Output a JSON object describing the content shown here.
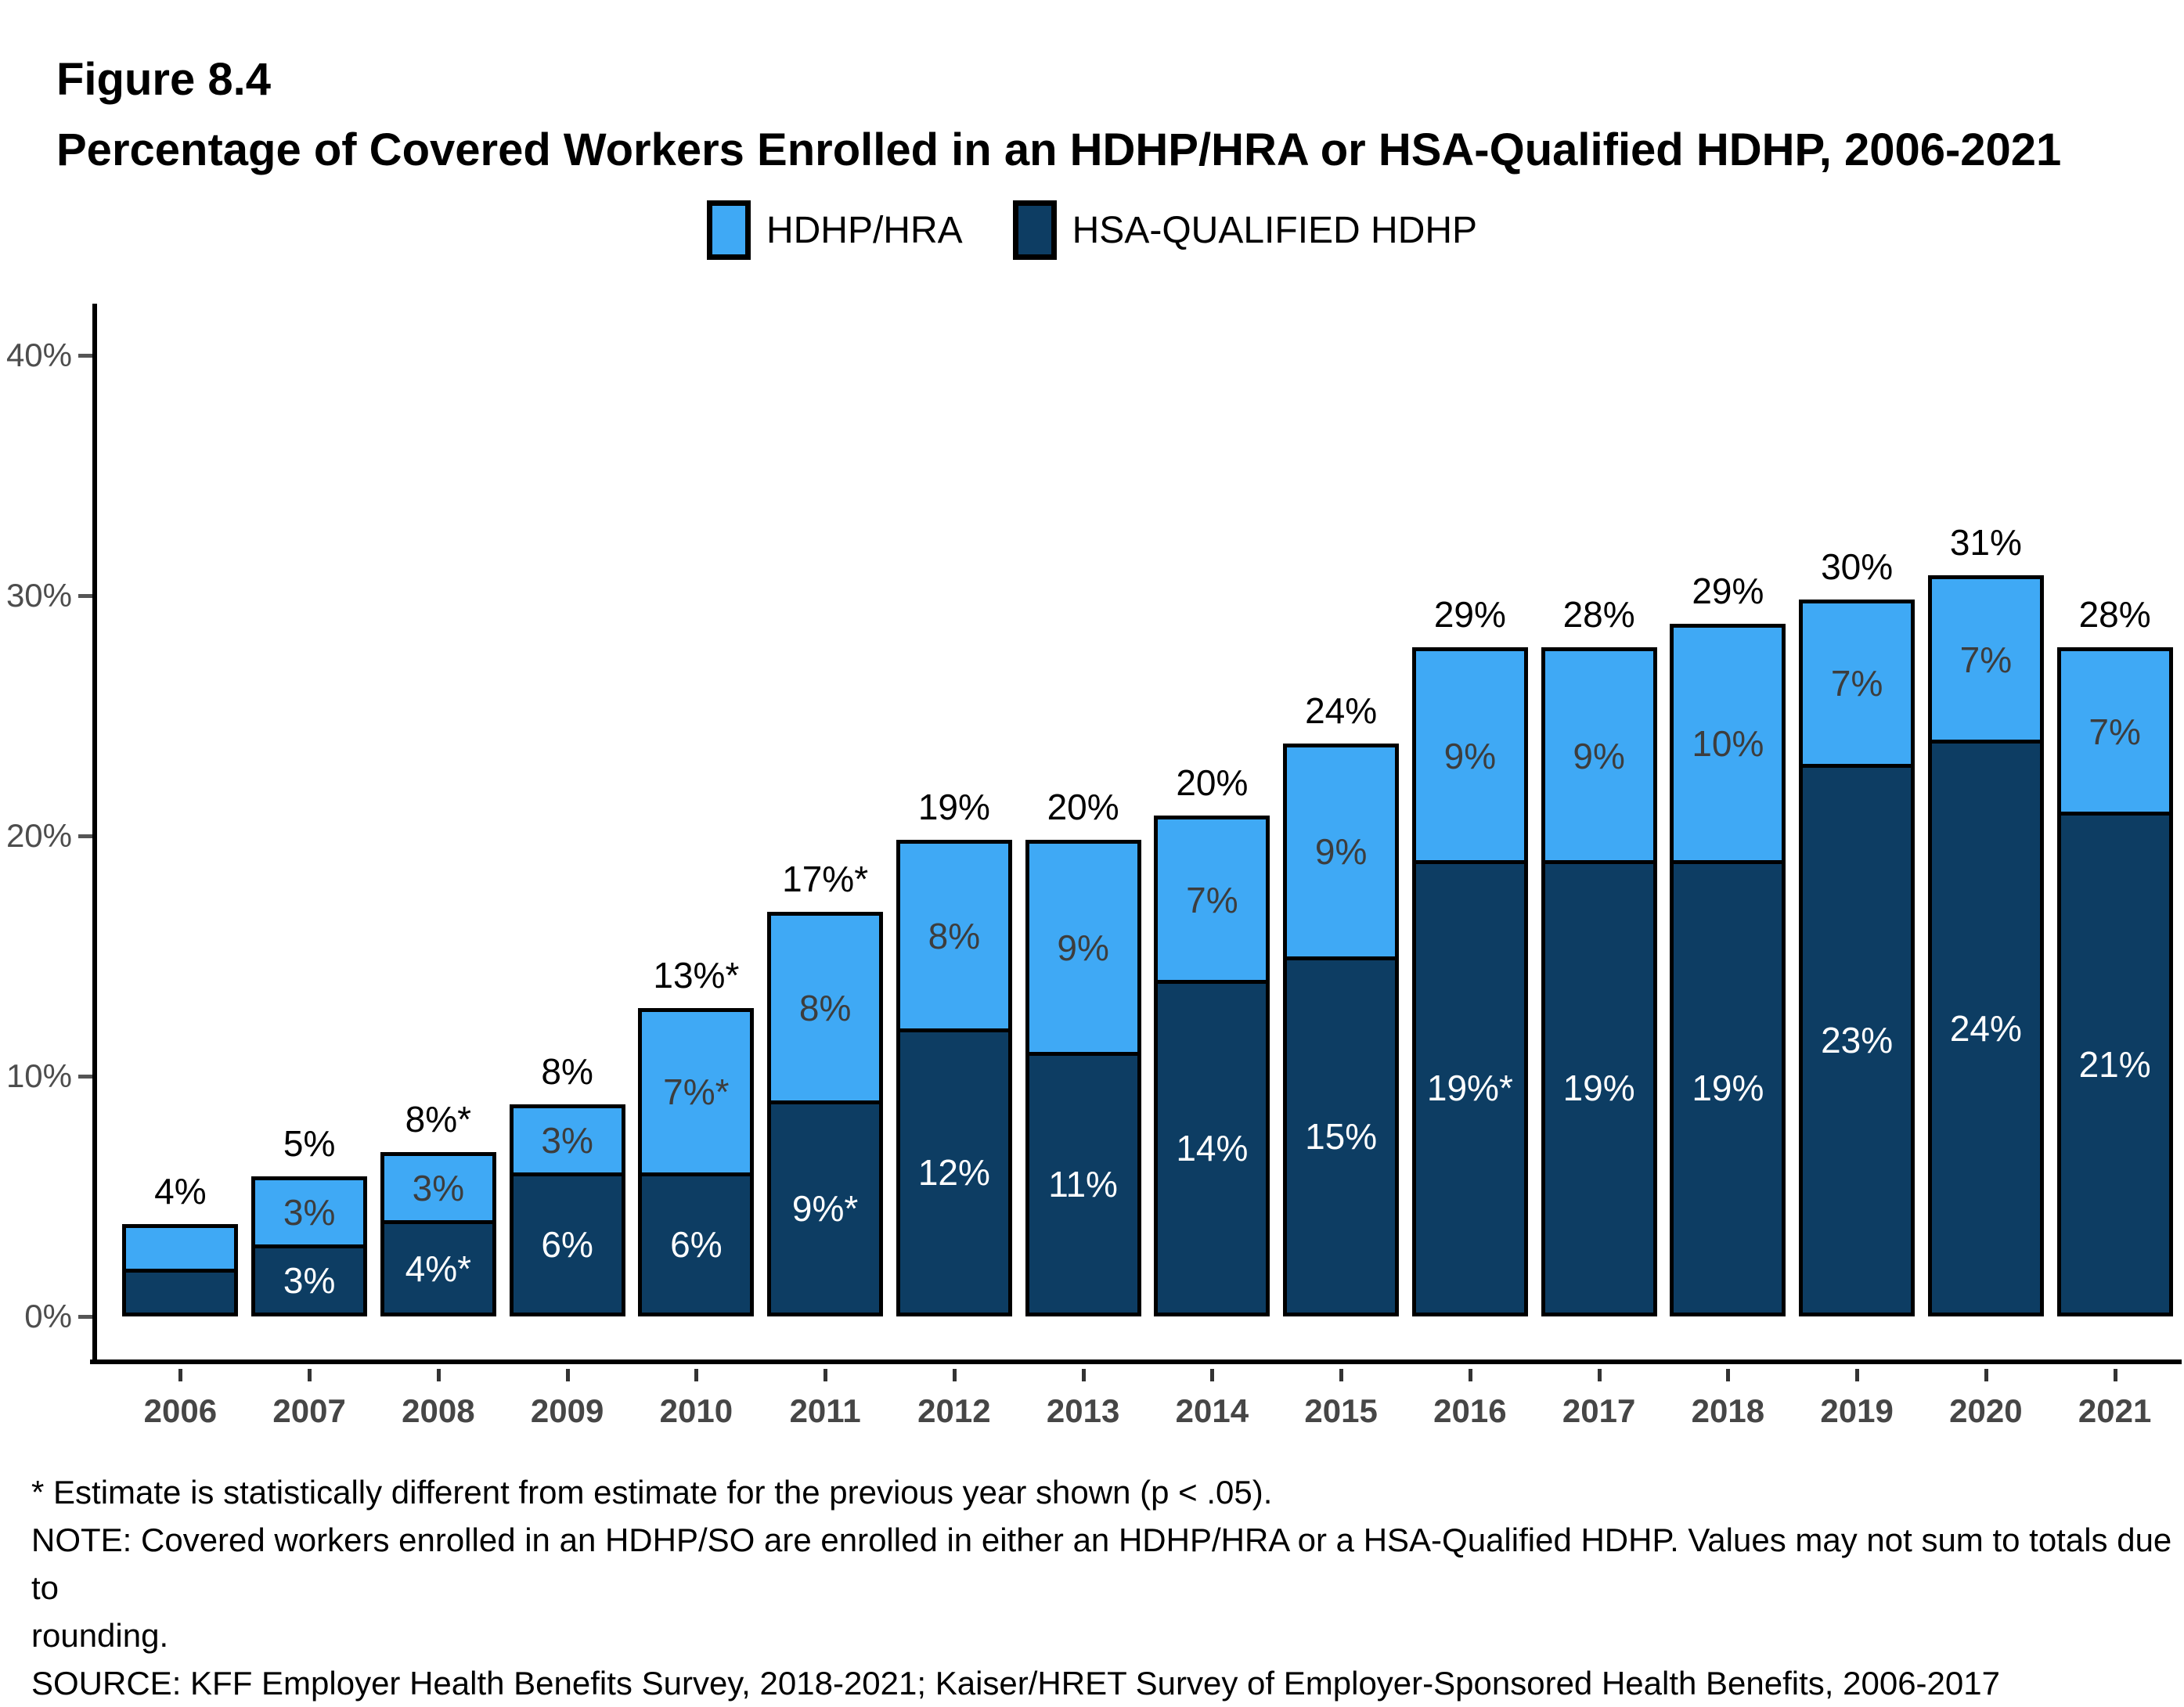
{
  "header": {
    "figure_label": "Figure 8.4",
    "title": "Percentage of Covered Workers Enrolled in an HDHP/HRA or HSA-Qualified HDHP, 2006-2021"
  },
  "legend": {
    "items": [
      {
        "label": "HDHP/HRA",
        "color": "#3FA9F5"
      },
      {
        "label": "HSA-QUALIFIED HDHP",
        "color": "#0D3D63"
      }
    ]
  },
  "colors": {
    "hdhp_hra_light_blue": "#3FA9F5",
    "hsa_qualified_dark_navy": "#0D3D63",
    "axis_black": "#000000",
    "axis_label_gray": "#4d4d4d",
    "year_label_gray": "#464646"
  },
  "chart_data": {
    "type": "bar",
    "stacked": true,
    "title": "Percentage of Covered Workers Enrolled in an HDHP/HRA or HSA-Qualified HDHP, 2006-2021",
    "xlabel": "",
    "ylabel": "",
    "ylim": [
      0,
      40
    ],
    "grid": false,
    "legend_position": "top-center",
    "categories": [
      "2006",
      "2007",
      "2008",
      "2009",
      "2010",
      "2011",
      "2012",
      "2013",
      "2014",
      "2015",
      "2016",
      "2017",
      "2018",
      "2019",
      "2020",
      "2021"
    ],
    "series": [
      {
        "name": "HSA-QUALIFIED HDHP",
        "color": "#0D3D63",
        "values": [
          2,
          3,
          4,
          6,
          6,
          9,
          12,
          11,
          14,
          15,
          19,
          19,
          19,
          23,
          24,
          21
        ],
        "labels": [
          "",
          "3%",
          "4%*",
          "6%",
          "6%",
          "9%*",
          "12%",
          "11%",
          "14%",
          "15%",
          "19%*",
          "19%",
          "19%",
          "23%",
          "24%",
          "21%"
        ]
      },
      {
        "name": "HDHP/HRA",
        "color": "#3FA9F5",
        "values": [
          2,
          3,
          3,
          3,
          7,
          8,
          8,
          9,
          7,
          9,
          9,
          9,
          10,
          7,
          7,
          7
        ],
        "labels": [
          "",
          "3%",
          "3%",
          "3%",
          "7%*",
          "8%",
          "8%",
          "9%",
          "7%",
          "9%",
          "9%",
          "9%",
          "10%",
          "7%",
          "7%",
          "7%"
        ]
      }
    ],
    "totals": [
      "4%",
      "5%",
      "8%*",
      "8%",
      "13%*",
      "17%*",
      "19%",
      "20%",
      "20%",
      "24%",
      "29%",
      "28%",
      "29%",
      "30%",
      "31%",
      "28%"
    ],
    "y_ticks": [
      {
        "value": 0,
        "label": "0%"
      },
      {
        "value": 10,
        "label": "10%"
      },
      {
        "value": 20,
        "label": "20%"
      },
      {
        "value": 30,
        "label": "30%"
      },
      {
        "value": 40,
        "label": "40%"
      }
    ]
  },
  "footnotes": {
    "lines": [
      "* Estimate is statistically different from estimate for the previous year shown (p < .05).",
      "NOTE: Covered workers enrolled in an HDHP/SO are enrolled in either an HDHP/HRA or a HSA-Qualified HDHP. Values may not sum to totals due to",
      "rounding.",
      "SOURCE: KFF Employer Health Benefits Survey, 2018-2021; Kaiser/HRET Survey of Employer-Sponsored Health Benefits, 2006-2017"
    ]
  }
}
